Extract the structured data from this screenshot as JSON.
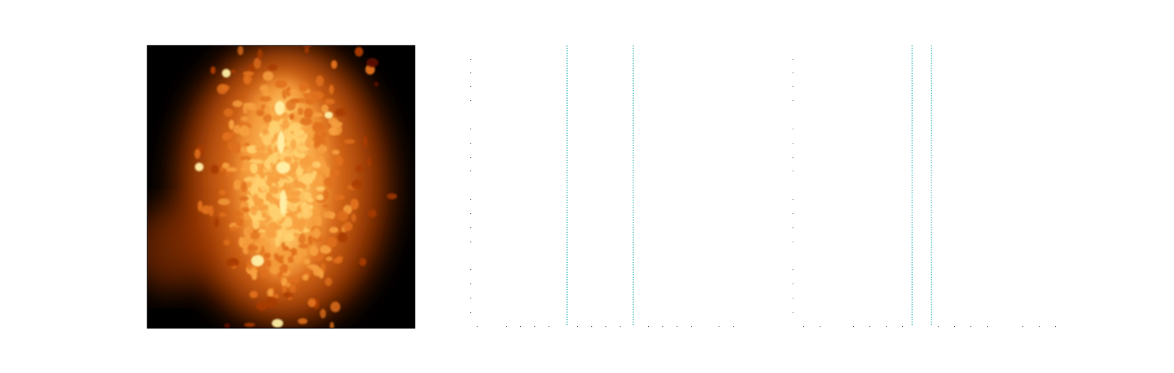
{
  "figure": {
    "background": "#ffffff",
    "image_panel": {
      "subject": "galaxy",
      "colormap": [
        "#000000",
        "#5a0f00",
        "#a83a00",
        "#e0701a",
        "#f7a040",
        "#ffd070",
        "#fff0a8"
      ],
      "frame_color": "#000000"
    },
    "panels": [
      {
        "guide_color": "#2ab3b3",
        "vertical_guides": 2,
        "x_ticks": 16,
        "y_ticks": 20
      },
      {
        "guide_color": "#2ab3b3",
        "vertical_guides": 2,
        "x_ticks": 14,
        "y_ticks": 20
      }
    ]
  }
}
